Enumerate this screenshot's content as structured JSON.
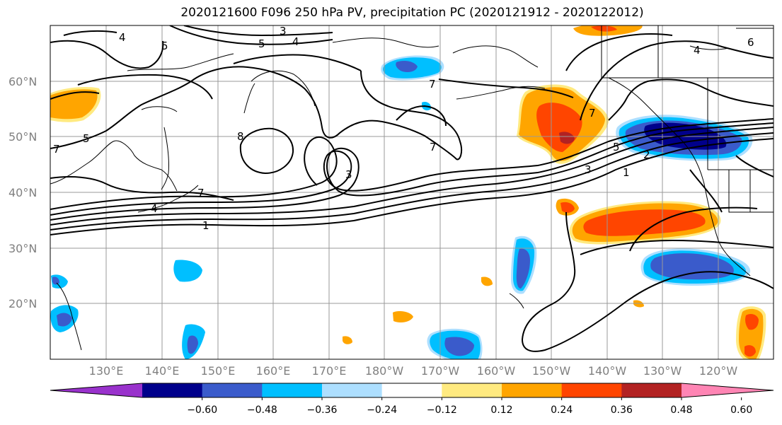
{
  "title": "2020121600 F096 250 hPa PV, precipitation PC (2020121912 - 2020122012)",
  "lat_labels": [
    {
      "text": "60°N",
      "lat": 60
    },
    {
      "text": "50°N",
      "lat": 50
    },
    {
      "text": "40°N",
      "lat": 40
    },
    {
      "text": "30°N",
      "lat": 30
    },
    {
      "text": "20°N",
      "lat": 20
    }
  ],
  "lon_labels": [
    {
      "text": "130°E",
      "lon": 130
    },
    {
      "text": "140°E",
      "lon": 140
    },
    {
      "text": "150°E",
      "lon": 150
    },
    {
      "text": "160°E",
      "lon": 160
    },
    {
      "text": "170°E",
      "lon": 170
    },
    {
      "text": "180°W",
      "lon": 180
    },
    {
      "text": "170°W",
      "lon": 190
    },
    {
      "text": "160°W",
      "lon": 200
    },
    {
      "text": "150°W",
      "lon": 210
    },
    {
      "text": "140°W",
      "lon": 220
    },
    {
      "text": "130°W",
      "lon": 230
    },
    {
      "text": "120°W",
      "lon": 240
    }
  ],
  "colorbar": {
    "colors": [
      "#9932CC",
      "#00008B",
      "#3A5BCB",
      "#00BFFF",
      "#ADDFFF",
      "#FFFFFF",
      "#FFEA80",
      "#FFA500",
      "#FF4500",
      "#B22222",
      "#FF85B4"
    ],
    "labels": [
      "−0.60",
      "−0.48",
      "−0.36",
      "−0.24",
      "−0.12",
      "0.12",
      "0.24",
      "0.36",
      "0.48",
      "0.60"
    ]
  },
  "contour_labels": [
    "4",
    "5",
    "3",
    "5",
    "4",
    "6",
    "7",
    "7",
    "7",
    "8",
    "7",
    "3",
    "7",
    "4",
    "1",
    "3",
    "2",
    "1",
    "5",
    "5",
    "4"
  ]
}
